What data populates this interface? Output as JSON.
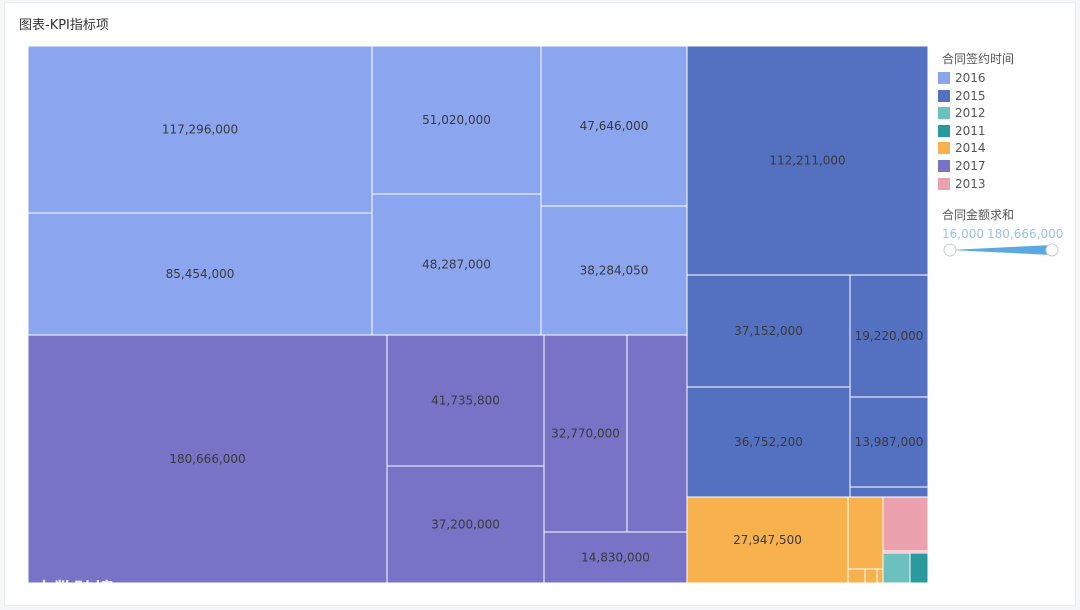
{
  "title": "图表-KPI指标项",
  "legend": {
    "color_title": "合同签约时间",
    "items": [
      {
        "label": "2016",
        "color": "#8ba5ef"
      },
      {
        "label": "2015",
        "color": "#5470c1"
      },
      {
        "label": "2012",
        "color": "#6cc0be"
      },
      {
        "label": "2011",
        "color": "#2a9a9f"
      },
      {
        "label": "2014",
        "color": "#f7b24d"
      },
      {
        "label": "2017",
        "color": "#7873c6"
      },
      {
        "label": "2013",
        "color": "#eba1ae"
      }
    ],
    "size_title": "合同金额求和",
    "range_min": "16,000",
    "range_max": "180,666,000"
  },
  "watermark": "大数跨境",
  "chart_data": {
    "type": "treemap",
    "value_field": "合同金额求和",
    "color_field": "合同签约时间",
    "groups": [
      {
        "name": "2016",
        "values": [
          117296000,
          85454000,
          51020000,
          48287000,
          47646000,
          38284050
        ]
      },
      {
        "name": "2017",
        "values": [
          180666000,
          41735800,
          37200000,
          32770000,
          14830000
        ]
      },
      {
        "name": "2015",
        "values": [
          112211000,
          37152000,
          36752200,
          19220000,
          13987000
        ]
      },
      {
        "name": "2014",
        "values": [
          27947500
        ]
      },
      {
        "name": "2013",
        "values": []
      },
      {
        "name": "2012",
        "values": []
      },
      {
        "name": "2011",
        "values": []
      }
    ]
  }
}
